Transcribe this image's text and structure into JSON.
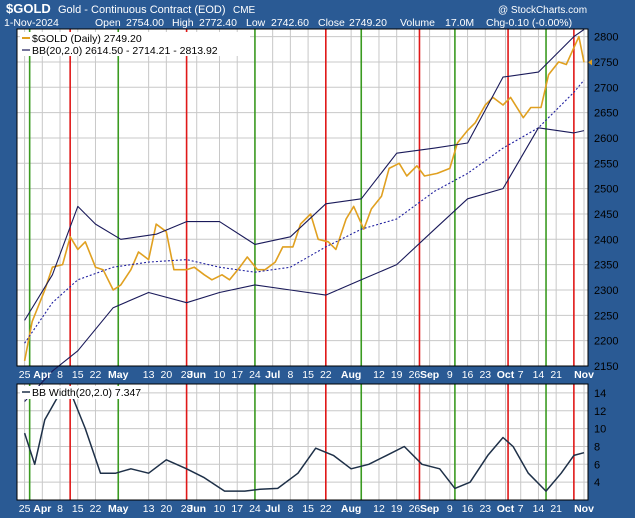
{
  "header": {
    "symbol": "$GOLD",
    "name": "Gold - Continuous Contract (EOD)",
    "exchange": "CME",
    "watermark": "@ StockCharts.com",
    "date": "1-Nov-2024",
    "open_label": "Open",
    "open": "2754.00",
    "high_label": "High",
    "high": "2772.40",
    "low_label": "Low",
    "low": "2742.60",
    "close_label": "Close",
    "close": "2749.20",
    "volume_label": "Volume",
    "volume": "17.0M",
    "chg_label": "Chg",
    "chg": "-0.10 (-0.00%)"
  },
  "chart_data": [
    {
      "type": "line",
      "panel": "price",
      "y_axis_side": "right",
      "ylim": [
        2150,
        2815
      ],
      "yticks": [
        2150,
        2200,
        2250,
        2300,
        2350,
        2400,
        2450,
        2500,
        2550,
        2600,
        2650,
        2700,
        2750,
        2800
      ],
      "grid": true,
      "legend_position": "top-left",
      "legend": [
        "$GOLD (Daily) 2749.20",
        "BB(20,2.0) 2614.50 - 2714.21 - 2813.92"
      ],
      "series": [
        {
          "name": "$GOLD (Daily)",
          "color": "#e0a020",
          "x": [
            "2024-03-25",
            "2024-03-28",
            "2024-04-02",
            "2024-04-05",
            "2024-04-09",
            "2024-04-12",
            "2024-04-15",
            "2024-04-18",
            "2024-04-22",
            "2024-04-25",
            "2024-04-29",
            "2024-05-02",
            "2024-05-06",
            "2024-05-09",
            "2024-05-13",
            "2024-05-16",
            "2024-05-20",
            "2024-05-23",
            "2024-05-28",
            "2024-05-31",
            "2024-06-04",
            "2024-06-07",
            "2024-06-11",
            "2024-06-14",
            "2024-06-18",
            "2024-06-21",
            "2024-06-25",
            "2024-06-28",
            "2024-07-02",
            "2024-07-05",
            "2024-07-09",
            "2024-07-12",
            "2024-07-16",
            "2024-07-19",
            "2024-07-23",
            "2024-07-26",
            "2024-07-30",
            "2024-08-02",
            "2024-08-06",
            "2024-08-09",
            "2024-08-13",
            "2024-08-16",
            "2024-08-20",
            "2024-08-23",
            "2024-08-27",
            "2024-08-30",
            "2024-09-04",
            "2024-09-09",
            "2024-09-12",
            "2024-09-16",
            "2024-09-19",
            "2024-09-23",
            "2024-09-26",
            "2024-09-30",
            "2024-10-03",
            "2024-10-08",
            "2024-10-11",
            "2024-10-15",
            "2024-10-18",
            "2024-10-22",
            "2024-10-25",
            "2024-10-30",
            "2024-11-01"
          ],
          "values": [
            2160,
            2238,
            2300,
            2345,
            2350,
            2405,
            2380,
            2395,
            2345,
            2340,
            2300,
            2310,
            2340,
            2375,
            2360,
            2430,
            2415,
            2340,
            2340,
            2345,
            2330,
            2320,
            2330,
            2320,
            2345,
            2365,
            2340,
            2340,
            2355,
            2385,
            2385,
            2430,
            2450,
            2400,
            2395,
            2380,
            2440,
            2465,
            2420,
            2460,
            2485,
            2540,
            2550,
            2525,
            2545,
            2525,
            2530,
            2540,
            2590,
            2615,
            2630,
            2665,
            2680,
            2665,
            2680,
            2640,
            2660,
            2660,
            2725,
            2750,
            2745,
            2800,
            2749.2
          ]
        },
        {
          "name": "BB Middle",
          "color": "#2020a0",
          "dash": "dotted",
          "x": [
            "2024-03-25",
            "2024-04-05",
            "2024-04-15",
            "2024-04-29",
            "2024-05-13",
            "2024-05-28",
            "2024-06-10",
            "2024-06-24",
            "2024-07-08",
            "2024-07-22",
            "2024-08-05",
            "2024-08-19",
            "2024-09-03",
            "2024-09-16",
            "2024-09-30",
            "2024-10-14",
            "2024-10-28",
            "2024-11-01"
          ],
          "values": [
            2195,
            2275,
            2320,
            2345,
            2355,
            2360,
            2345,
            2335,
            2345,
            2385,
            2420,
            2440,
            2495,
            2530,
            2580,
            2620,
            2690,
            2714.21
          ]
        },
        {
          "name": "BB Upper",
          "color": "#1a1a5a",
          "x": [
            "2024-03-25",
            "2024-04-05",
            "2024-04-15",
            "2024-04-22",
            "2024-05-02",
            "2024-05-16",
            "2024-05-28",
            "2024-06-10",
            "2024-06-24",
            "2024-07-08",
            "2024-07-22",
            "2024-08-05",
            "2024-08-19",
            "2024-09-03",
            "2024-09-16",
            "2024-09-30",
            "2024-10-14",
            "2024-10-28",
            "2024-11-01"
          ],
          "values": [
            2240,
            2330,
            2465,
            2430,
            2400,
            2410,
            2435,
            2435,
            2390,
            2405,
            2470,
            2480,
            2570,
            2580,
            2590,
            2720,
            2730,
            2800,
            2813.92
          ]
        },
        {
          "name": "BB Lower",
          "color": "#1a1a5a",
          "x": [
            "2024-03-25",
            "2024-04-05",
            "2024-04-15",
            "2024-04-29",
            "2024-05-13",
            "2024-05-28",
            "2024-06-10",
            "2024-06-24",
            "2024-07-08",
            "2024-07-22",
            "2024-08-05",
            "2024-08-19",
            "2024-09-03",
            "2024-09-16",
            "2024-09-30",
            "2024-10-14",
            "2024-10-28",
            "2024-11-01"
          ],
          "values": [
            2080,
            2140,
            2180,
            2265,
            2295,
            2275,
            2295,
            2310,
            2300,
            2290,
            2320,
            2350,
            2420,
            2480,
            2500,
            2620,
            2610,
            2614.5
          ]
        }
      ]
    },
    {
      "type": "line",
      "panel": "bbwidth",
      "y_axis_side": "right",
      "ylim": [
        2,
        15
      ],
      "yticks": [
        4,
        6,
        8,
        10,
        12,
        14
      ],
      "grid": true,
      "legend_position": "top-left",
      "legend": [
        "BB Width(20,2.0) 7.347"
      ],
      "series": [
        {
          "name": "BB Width(20,2.0)",
          "color": "#1e3048",
          "x": [
            "2024-03-25",
            "2024-03-29",
            "2024-04-02",
            "2024-04-08",
            "2024-04-12",
            "2024-04-18",
            "2024-04-24",
            "2024-04-30",
            "2024-05-06",
            "2024-05-13",
            "2024-05-20",
            "2024-05-28",
            "2024-06-04",
            "2024-06-12",
            "2024-06-20",
            "2024-06-26",
            "2024-07-03",
            "2024-07-11",
            "2024-07-18",
            "2024-07-25",
            "2024-08-01",
            "2024-08-08",
            "2024-08-15",
            "2024-08-22",
            "2024-08-29",
            "2024-09-05",
            "2024-09-11",
            "2024-09-17",
            "2024-09-24",
            "2024-09-30",
            "2024-10-04",
            "2024-10-10",
            "2024-10-17",
            "2024-10-23",
            "2024-10-28",
            "2024-11-01"
          ],
          "values": [
            9.5,
            6,
            11,
            14,
            14.2,
            10,
            5,
            5,
            5.5,
            5,
            6.5,
            5.5,
            4.5,
            3,
            3,
            3.2,
            3.3,
            5,
            7.8,
            7,
            5.5,
            6,
            7,
            8,
            6,
            5.5,
            3.3,
            4,
            7,
            9,
            8,
            5,
            3,
            5,
            7,
            7.3
          ]
        }
      ]
    }
  ],
  "x_axis": {
    "labels": [
      "25",
      "Apr",
      "8",
      "15",
      "22",
      "May",
      "13",
      "20",
      "28",
      "Jun",
      "10",
      "17",
      "24",
      "Jul",
      "8",
      "15",
      "22",
      "Aug",
      "12",
      "19",
      "26",
      "Sep",
      "9",
      "16",
      "23",
      "Oct",
      "7",
      "14",
      "21",
      "Nov"
    ],
    "bold_labels": [
      "Apr",
      "May",
      "Jun",
      "Jul",
      "Aug",
      "Sep",
      "Oct",
      "Nov"
    ],
    "dates": [
      "2024-03-25",
      "2024-04-01",
      "2024-04-08",
      "2024-04-15",
      "2024-04-22",
      "2024-05-01",
      "2024-05-13",
      "2024-05-20",
      "2024-05-28",
      "2024-06-01",
      "2024-06-10",
      "2024-06-17",
      "2024-06-24",
      "2024-07-01",
      "2024-07-08",
      "2024-07-15",
      "2024-07-22",
      "2024-08-01",
      "2024-08-12",
      "2024-08-19",
      "2024-08-26",
      "2024-09-01",
      "2024-09-09",
      "2024-09-16",
      "2024-09-23",
      "2024-10-01",
      "2024-10-07",
      "2024-10-14",
      "2024-10-21",
      "2024-11-01"
    ]
  },
  "vertical_markers": {
    "green": [
      "2024-03-27",
      "2024-05-01",
      "2024-06-24",
      "2024-08-05",
      "2024-09-11",
      "2024-10-17"
    ],
    "red": [
      "2024-04-12",
      "2024-05-28",
      "2024-07-22",
      "2024-08-28",
      "2024-10-02",
      "2024-10-28"
    ],
    "green_color": "#3a9a20",
    "red_color": "#e01818"
  },
  "colors": {
    "background": "#2a5a94",
    "plot_bg": "#ffffff",
    "grid": "#c8c8c8"
  }
}
